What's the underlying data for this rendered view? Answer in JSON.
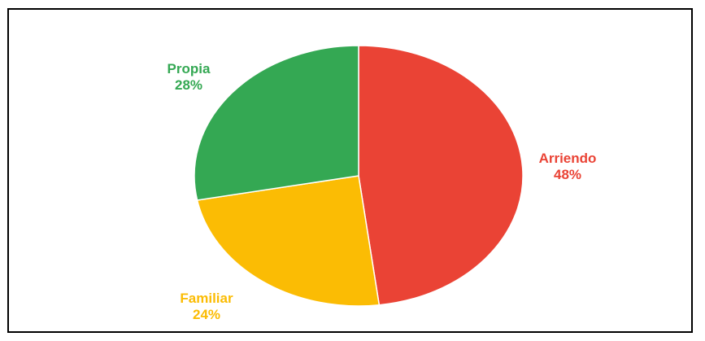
{
  "chart_data": {
    "type": "pie",
    "title": "",
    "slices": [
      {
        "label": "Arriendo",
        "value": 48,
        "value_label": "48%",
        "color": "#EA4335"
      },
      {
        "label": "Familiar",
        "value": 24,
        "value_label": "24%",
        "color": "#FBBC04"
      },
      {
        "label": "Propia",
        "value": 28,
        "value_label": "28%",
        "color": "#34A853"
      }
    ],
    "start": "12 o'clock",
    "direction": "clockwise",
    "legend": "none"
  }
}
